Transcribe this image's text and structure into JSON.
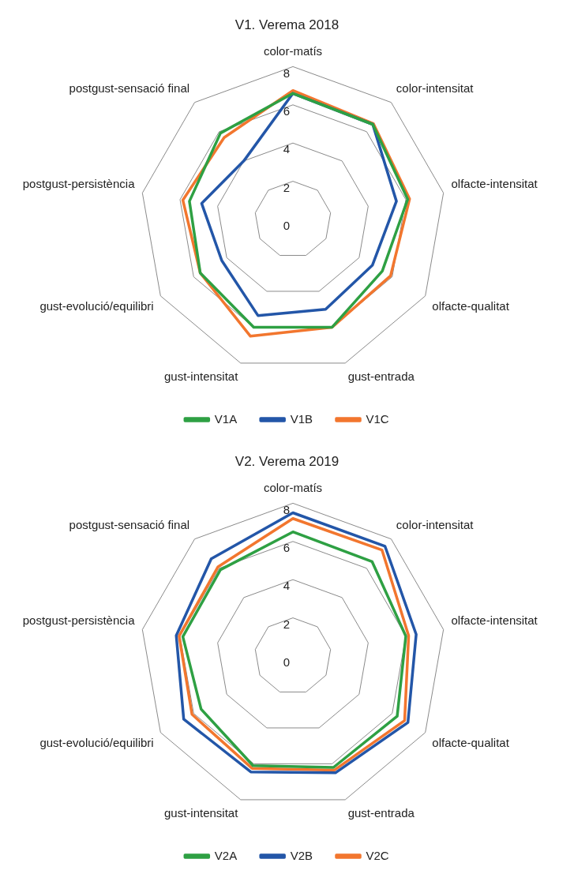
{
  "chart_data": [
    {
      "type": "radar",
      "title": "V1. Verema 2018",
      "categories": [
        "color-matís",
        "color-intensitat",
        "olfacte-intensitat",
        "olfacte-qualitat",
        "gust-entrada",
        "gust-intensitat",
        "gust-evolució/equilibri",
        "postgust-persistència",
        "postgust-sensació final"
      ],
      "ylim": [
        0,
        8
      ],
      "yticks": [
        0,
        2,
        4,
        6,
        8
      ],
      "grid": true,
      "legend": "bottom",
      "marker": "none",
      "series": [
        {
          "name": "V1A",
          "color": "#2ea043",
          "values": [
            6.6,
            6.5,
            6.1,
            5.4,
            6.0,
            6.0,
            5.6,
            5.5,
            5.9
          ]
        },
        {
          "name": "V1B",
          "color": "#2356a8",
          "values": [
            6.6,
            6.5,
            5.5,
            4.8,
            5.0,
            5.35,
            4.3,
            4.85,
            4.0
          ]
        },
        {
          "name": "V1C",
          "color": "#f2762e",
          "values": [
            6.75,
            6.55,
            6.2,
            5.9,
            6.0,
            6.5,
            5.6,
            5.85,
            5.6
          ]
        }
      ]
    },
    {
      "type": "radar",
      "title": "V2. Verema 2019",
      "categories": [
        "color-matís",
        "color-intensitat",
        "olfacte-intensitat",
        "olfacte-qualitat",
        "gust-entrada",
        "gust-intensitat",
        "gust-evolució/equilibri",
        "postgust-persistència",
        "postgust-sensació final"
      ],
      "ylim": [
        0,
        8
      ],
      "yticks": [
        0,
        2,
        4,
        6,
        8
      ],
      "grid": true,
      "legend": "bottom",
      "marker": "none",
      "series": [
        {
          "name": "V2A",
          "color": "#2ea043",
          "values": [
            6.5,
            6.45,
            6.0,
            6.3,
            6.2,
            6.1,
            5.55,
            5.85,
            5.9
          ]
        },
        {
          "name": "V2B",
          "color": "#2356a8",
          "values": [
            7.5,
            7.5,
            6.55,
            6.95,
            6.5,
            6.45,
            6.6,
            6.2,
            6.65
          ]
        },
        {
          "name": "V2C",
          "color": "#f2762e",
          "values": [
            7.2,
            7.25,
            6.15,
            6.75,
            6.35,
            6.25,
            6.1,
            6.05,
            6.1
          ]
        }
      ]
    }
  ]
}
